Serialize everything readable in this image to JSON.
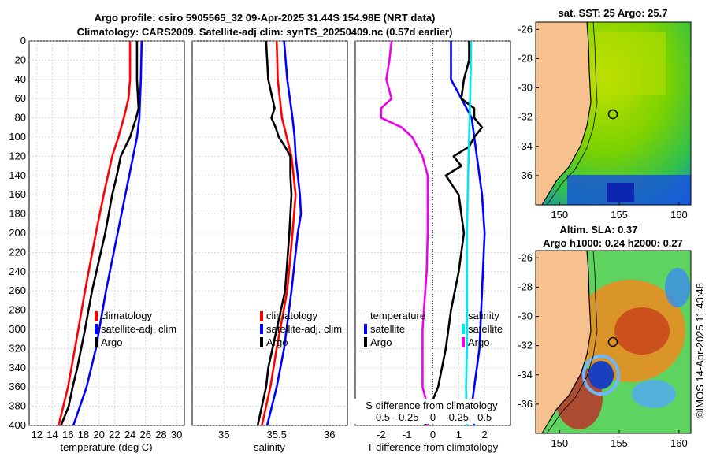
{
  "title_line1": "Argo profile: csiro 5905565_32 09-Apr-2025 31.44S 154.98E (NRT data)",
  "title_line2": "Climatology: CARS2009. Satellite-adj clim: synTS_20250409.nc (0.57d earlier)",
  "watermark": "©IMOS 14-Apr-2025 11:43:48",
  "colors": {
    "climatology": "#ff0000",
    "satellite": "#0000ff",
    "argo": "#000000",
    "salinity_satellite": "#00e5ee",
    "salinity_argo": "#ee00ee",
    "land": "#f6c08f",
    "zero_line": "#555555"
  },
  "legend_labels": {
    "climatology": "climatology",
    "satellite_adj": "satellite-adj. clim",
    "argo": "Argo",
    "temperature": "temperature",
    "salinity": "salinity",
    "satellite": "satellite"
  },
  "map_sst": {
    "title": "sat. SST: 25 Argo: 25.7",
    "type": "map",
    "lon_ticks": [
      "150",
      "155",
      "160"
    ],
    "lat_ticks": [
      "-26",
      "-28",
      "-30",
      "-32",
      "-34",
      "-36"
    ],
    "lon_range": [
      148,
      161
    ],
    "lat_range": [
      -38,
      -25.5
    ],
    "float_position": {
      "lon": 154.98,
      "lat": -31.44
    }
  },
  "map_sla": {
    "title_line1": "Altim. SLA: 0.37",
    "title_line2": "Argo h1000: 0.24 h2000: 0.27",
    "type": "map",
    "lon_ticks": [
      "150",
      "155",
      "160"
    ],
    "lat_ticks": [
      "-26",
      "-28",
      "-30",
      "-32",
      "-34",
      "-36"
    ],
    "lon_range": [
      148,
      161
    ],
    "lat_range": [
      -38,
      -25.5
    ],
    "float_position": {
      "lon": 154.98,
      "lat": -31.44
    }
  },
  "chart_data": [
    {
      "type": "line",
      "title": "",
      "xlabel": "temperature (deg C)",
      "ylabel": "",
      "xlim": [
        11,
        31
      ],
      "ylim": [
        400,
        0
      ],
      "grid": true,
      "legend": "center-right",
      "xticks": [
        12,
        14,
        16,
        18,
        20,
        22,
        24,
        26,
        28,
        30
      ],
      "yticks": [
        0,
        20,
        40,
        60,
        80,
        100,
        120,
        140,
        160,
        180,
        200,
        220,
        240,
        260,
        280,
        300,
        320,
        340,
        360,
        380,
        400
      ],
      "series": [
        {
          "name": "climatology",
          "depth": [
            0,
            40,
            60,
            80,
            100,
            120,
            160,
            200,
            260,
            320,
            360,
            400
          ],
          "values": [
            24.0,
            24.0,
            23.8,
            23.2,
            22.5,
            21.7,
            20.6,
            19.6,
            18.2,
            16.9,
            16.0,
            14.8
          ]
        },
        {
          "name": "satellite-adj. clim",
          "depth": [
            0,
            40,
            80,
            100,
            120,
            160,
            200,
            260,
            320,
            360,
            400
          ],
          "values": [
            25.5,
            25.4,
            25.2,
            24.9,
            24.4,
            23.4,
            22.4,
            20.9,
            19.6,
            18.4,
            16.7
          ]
        },
        {
          "name": "Argo",
          "depth": [
            0,
            40,
            70,
            80,
            90,
            100,
            110,
            120,
            140,
            160,
            200,
            260,
            300,
            340,
            360,
            380,
            400
          ],
          "values": [
            24.9,
            24.9,
            25.1,
            24.8,
            24.4,
            24.0,
            23.4,
            22.8,
            22.3,
            21.7,
            20.8,
            19.1,
            18.2,
            17.2,
            16.6,
            16.1,
            15.1
          ]
        }
      ]
    },
    {
      "type": "line",
      "title": "",
      "xlabel": "salinity",
      "ylabel": "",
      "xlim": [
        34.7,
        36.17
      ],
      "ylim": [
        400,
        0
      ],
      "grid": true,
      "legend": "center-right",
      "xticks": [
        35,
        35.5,
        36
      ],
      "series": [
        {
          "name": "climatology",
          "depth": [
            0,
            40,
            80,
            120,
            160,
            200,
            260,
            320,
            360,
            400
          ],
          "values": [
            35.5,
            35.51,
            35.55,
            35.64,
            35.68,
            35.65,
            35.6,
            35.5,
            35.44,
            35.36
          ]
        },
        {
          "name": "satellite-adj. clim",
          "depth": [
            0,
            40,
            80,
            100,
            120,
            160,
            180,
            200,
            260,
            320,
            360,
            400
          ],
          "values": [
            35.57,
            35.6,
            35.65,
            35.67,
            35.68,
            35.72,
            35.73,
            35.7,
            35.64,
            35.57,
            35.5,
            35.41
          ]
        },
        {
          "name": "Argo",
          "depth": [
            0,
            40,
            70,
            80,
            90,
            100,
            110,
            120,
            140,
            160,
            200,
            260,
            300,
            340,
            360,
            380,
            400
          ],
          "values": [
            35.4,
            35.42,
            35.48,
            35.45,
            35.49,
            35.52,
            35.58,
            35.63,
            35.63,
            35.64,
            35.62,
            35.58,
            35.5,
            35.42,
            35.4,
            35.36,
            35.32
          ]
        }
      ]
    },
    {
      "type": "line",
      "title": "",
      "xlabel": "T difference from climatology",
      "ylabel": "",
      "xlim": [
        -3,
        3
      ],
      "ylim": [
        400,
        0
      ],
      "grid": true,
      "xticks": [
        -2,
        -1,
        0,
        1,
        2
      ],
      "secondary_xlabel": "S difference from climatology",
      "secondary_xticks": [
        "-0.5",
        "-0.25",
        "0",
        "0.25",
        "0.5"
      ],
      "series": [
        {
          "name": "temperature satellite",
          "depth": [
            0,
            40,
            80,
            100,
            120,
            160,
            200,
            260,
            320,
            360,
            380,
            400
          ],
          "values": [
            0.7,
            0.7,
            1.5,
            1.6,
            1.7,
            1.9,
            2.0,
            1.9,
            1.8,
            1.6,
            1.5,
            1.6
          ]
        },
        {
          "name": "temperature Argo",
          "depth": [
            0,
            20,
            40,
            60,
            70,
            80,
            90,
            100,
            110,
            120,
            130,
            140,
            160,
            200,
            240,
            280,
            320,
            360,
            380,
            400
          ],
          "values": [
            1.4,
            1.4,
            1.2,
            1.1,
            1.6,
            1.6,
            1.9,
            1.6,
            1.4,
            0.8,
            1.1,
            0.5,
            1.0,
            1.2,
            1.0,
            0.7,
            0.5,
            0.2,
            -0.1,
            -0.3
          ]
        },
        {
          "name": "salinity satellite",
          "depth": [
            0,
            60,
            100,
            140,
            200,
            260,
            320,
            360,
            400
          ],
          "values": [
            0.37,
            0.36,
            0.35,
            0.34,
            0.33,
            0.33,
            0.33,
            0.32,
            0.33
          ]
        },
        {
          "name": "salinity Argo",
          "depth": [
            0,
            20,
            40,
            60,
            70,
            80,
            90,
            100,
            120,
            140,
            200,
            240,
            300,
            360,
            380,
            400
          ],
          "values": [
            -0.4,
            -0.42,
            -0.45,
            -0.4,
            -0.5,
            -0.5,
            -0.3,
            -0.2,
            -0.1,
            -0.05,
            -0.05,
            -0.06,
            -0.1,
            -0.1,
            -0.05,
            -0.05
          ]
        }
      ]
    }
  ]
}
